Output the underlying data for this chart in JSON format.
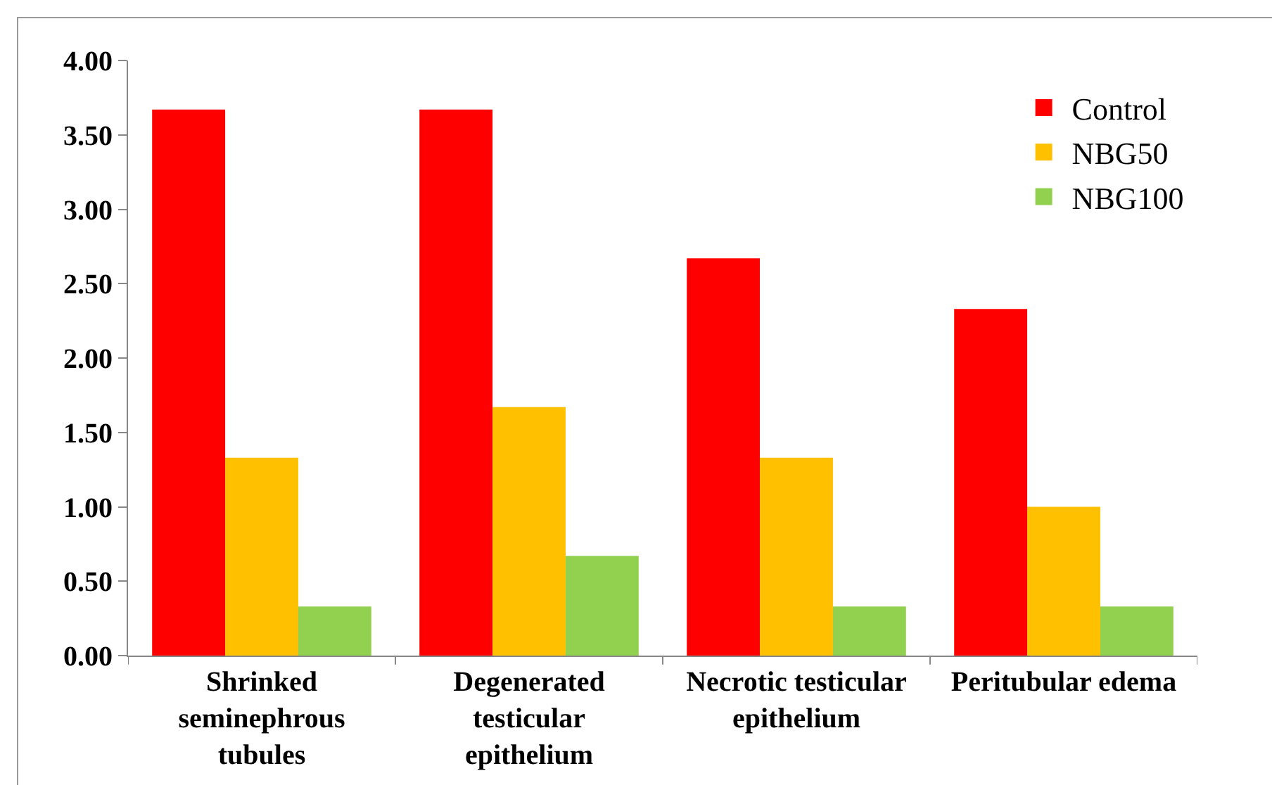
{
  "chart_data": {
    "type": "bar",
    "categories": [
      "Shrinked seminephrous tubules",
      "Degenerated testicular epithelium",
      "Necrotic testicular epithelium",
      "Peritubular edema"
    ],
    "series": [
      {
        "name": "Control",
        "color": "#ff0000",
        "values": [
          3.67,
          3.67,
          2.67,
          2.33
        ]
      },
      {
        "name": "NBG50",
        "color": "#ffc000",
        "values": [
          1.33,
          1.67,
          1.33,
          1.0
        ]
      },
      {
        "name": "NBG100",
        "color": "#92d050",
        "values": [
          0.33,
          0.67,
          0.33,
          0.33
        ]
      }
    ],
    "ylim": [
      0,
      4
    ],
    "yticks": [
      {
        "value": 0,
        "label": "0.00"
      },
      {
        "value": 0.5,
        "label": "0.50"
      },
      {
        "value": 1,
        "label": "1.00"
      },
      {
        "value": 1.5,
        "label": "1.50"
      },
      {
        "value": 2,
        "label": "2.00"
      },
      {
        "value": 2.5,
        "label": "2.50"
      },
      {
        "value": 3,
        "label": "3.00"
      },
      {
        "value": 3.5,
        "label": "3.50"
      },
      {
        "value": 4,
        "label": "4.00"
      }
    ],
    "grid": false,
    "legend": "top right"
  }
}
